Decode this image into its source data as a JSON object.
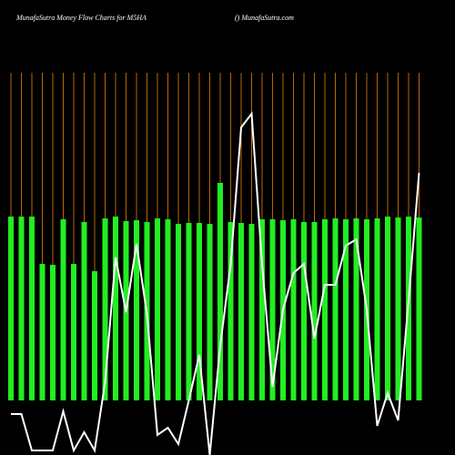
{
  "chart_data": {
    "type": "bar_line",
    "title": "MunafaSutra  Money Flow  Charts for M5HA",
    "subtitle": "() MunafaSutra.com",
    "categories": [
      null,
      null,
      null,
      null,
      null,
      null,
      null,
      null,
      null,
      null,
      null,
      null,
      null,
      null,
      null,
      null,
      null,
      null,
      null,
      null,
      null,
      null,
      null,
      null,
      null,
      null,
      null,
      null,
      null,
      null,
      null,
      null,
      null,
      null,
      null,
      null,
      null,
      null,
      null,
      null
    ],
    "series": [
      {
        "color": "#22ee22",
        "values": [
          202,
          202,
          202,
          150,
          149,
          199,
          150,
          196,
          142,
          200,
          202,
          197,
          198,
          196,
          200,
          199,
          194,
          195,
          195,
          194,
          239,
          196,
          195,
          194,
          199,
          199,
          198,
          199,
          196,
          196,
          199,
          200,
          199,
          200,
          199,
          200,
          202,
          201,
          202,
          201
        ]
      },
      {
        "color": "#ffffff",
        "values": [
          -15,
          -15,
          -55,
          -55,
          -55,
          -12,
          -55,
          -35,
          -55,
          20,
          157,
          97,
          172,
          95,
          -38,
          -30,
          -48,
          0,
          50,
          -60,
          60,
          150,
          300,
          315,
          150,
          15,
          100,
          140,
          150,
          68,
          127,
          127,
          170,
          177,
          100,
          -28,
          8,
          -22,
          110,
          250
        ]
      }
    ],
    "ylim": [
      -60,
      360
    ],
    "grid": true,
    "grid_color": "#b8660b"
  }
}
